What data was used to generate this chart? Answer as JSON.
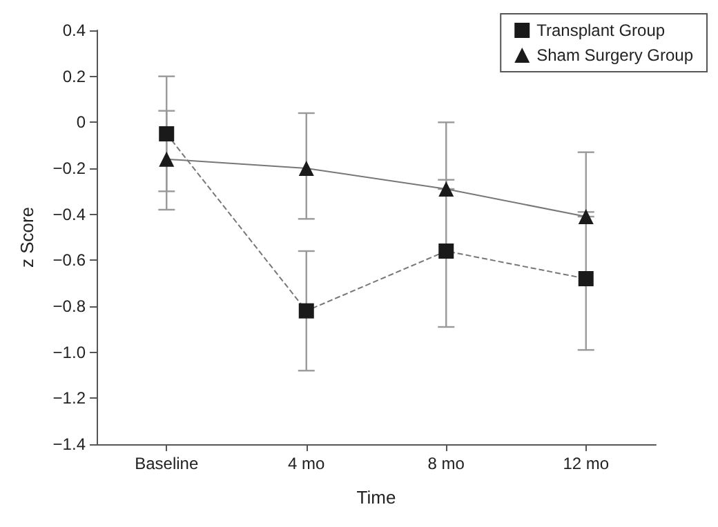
{
  "chart_data": {
    "type": "line",
    "xlabel": "Time",
    "ylabel": "z Score",
    "categories": [
      "Baseline",
      "4 mo",
      "8 mo",
      "12 mo"
    ],
    "series": [
      {
        "name": "Transplant Group",
        "color": "#1a1a1a",
        "marker": "square",
        "line_style": "dashed",
        "values": [
          -0.05,
          -0.82,
          -0.56,
          -0.68
        ],
        "errors": [
          [
            -0.3,
            0.2
          ],
          [
            -1.08,
            -0.56
          ],
          [
            -0.89,
            -0.25
          ],
          [
            -0.99,
            -0.39
          ]
        ]
      },
      {
        "name": "Sham Surgery Group",
        "color": "#1a1a1a",
        "marker": "triangle",
        "line_style": "solid",
        "values": [
          -0.16,
          -0.2,
          -0.29,
          -0.41
        ],
        "errors": [
          [
            -0.38,
            0.05
          ],
          [
            -0.42,
            0.04
          ],
          [
            -0.29,
            0.0
          ],
          [
            -0.41,
            -0.13
          ]
        ]
      }
    ],
    "ylim": [
      -1.4,
      0.4
    ],
    "yticks": [
      {
        "value": -1.4,
        "label": "−1.4"
      },
      {
        "value": -1.2,
        "label": "−1.2"
      },
      {
        "value": -1,
        "label": "−1.0"
      },
      {
        "value": -0.8,
        "label": "−0.8"
      },
      {
        "value": -0.6,
        "label": "−0.6"
      },
      {
        "value": -0.4,
        "label": "−0.4"
      },
      {
        "value": -0.2,
        "label": "−0.2"
      },
      0,
      0.2,
      0.4
    ],
    "grid": false,
    "legend": "top right"
  }
}
